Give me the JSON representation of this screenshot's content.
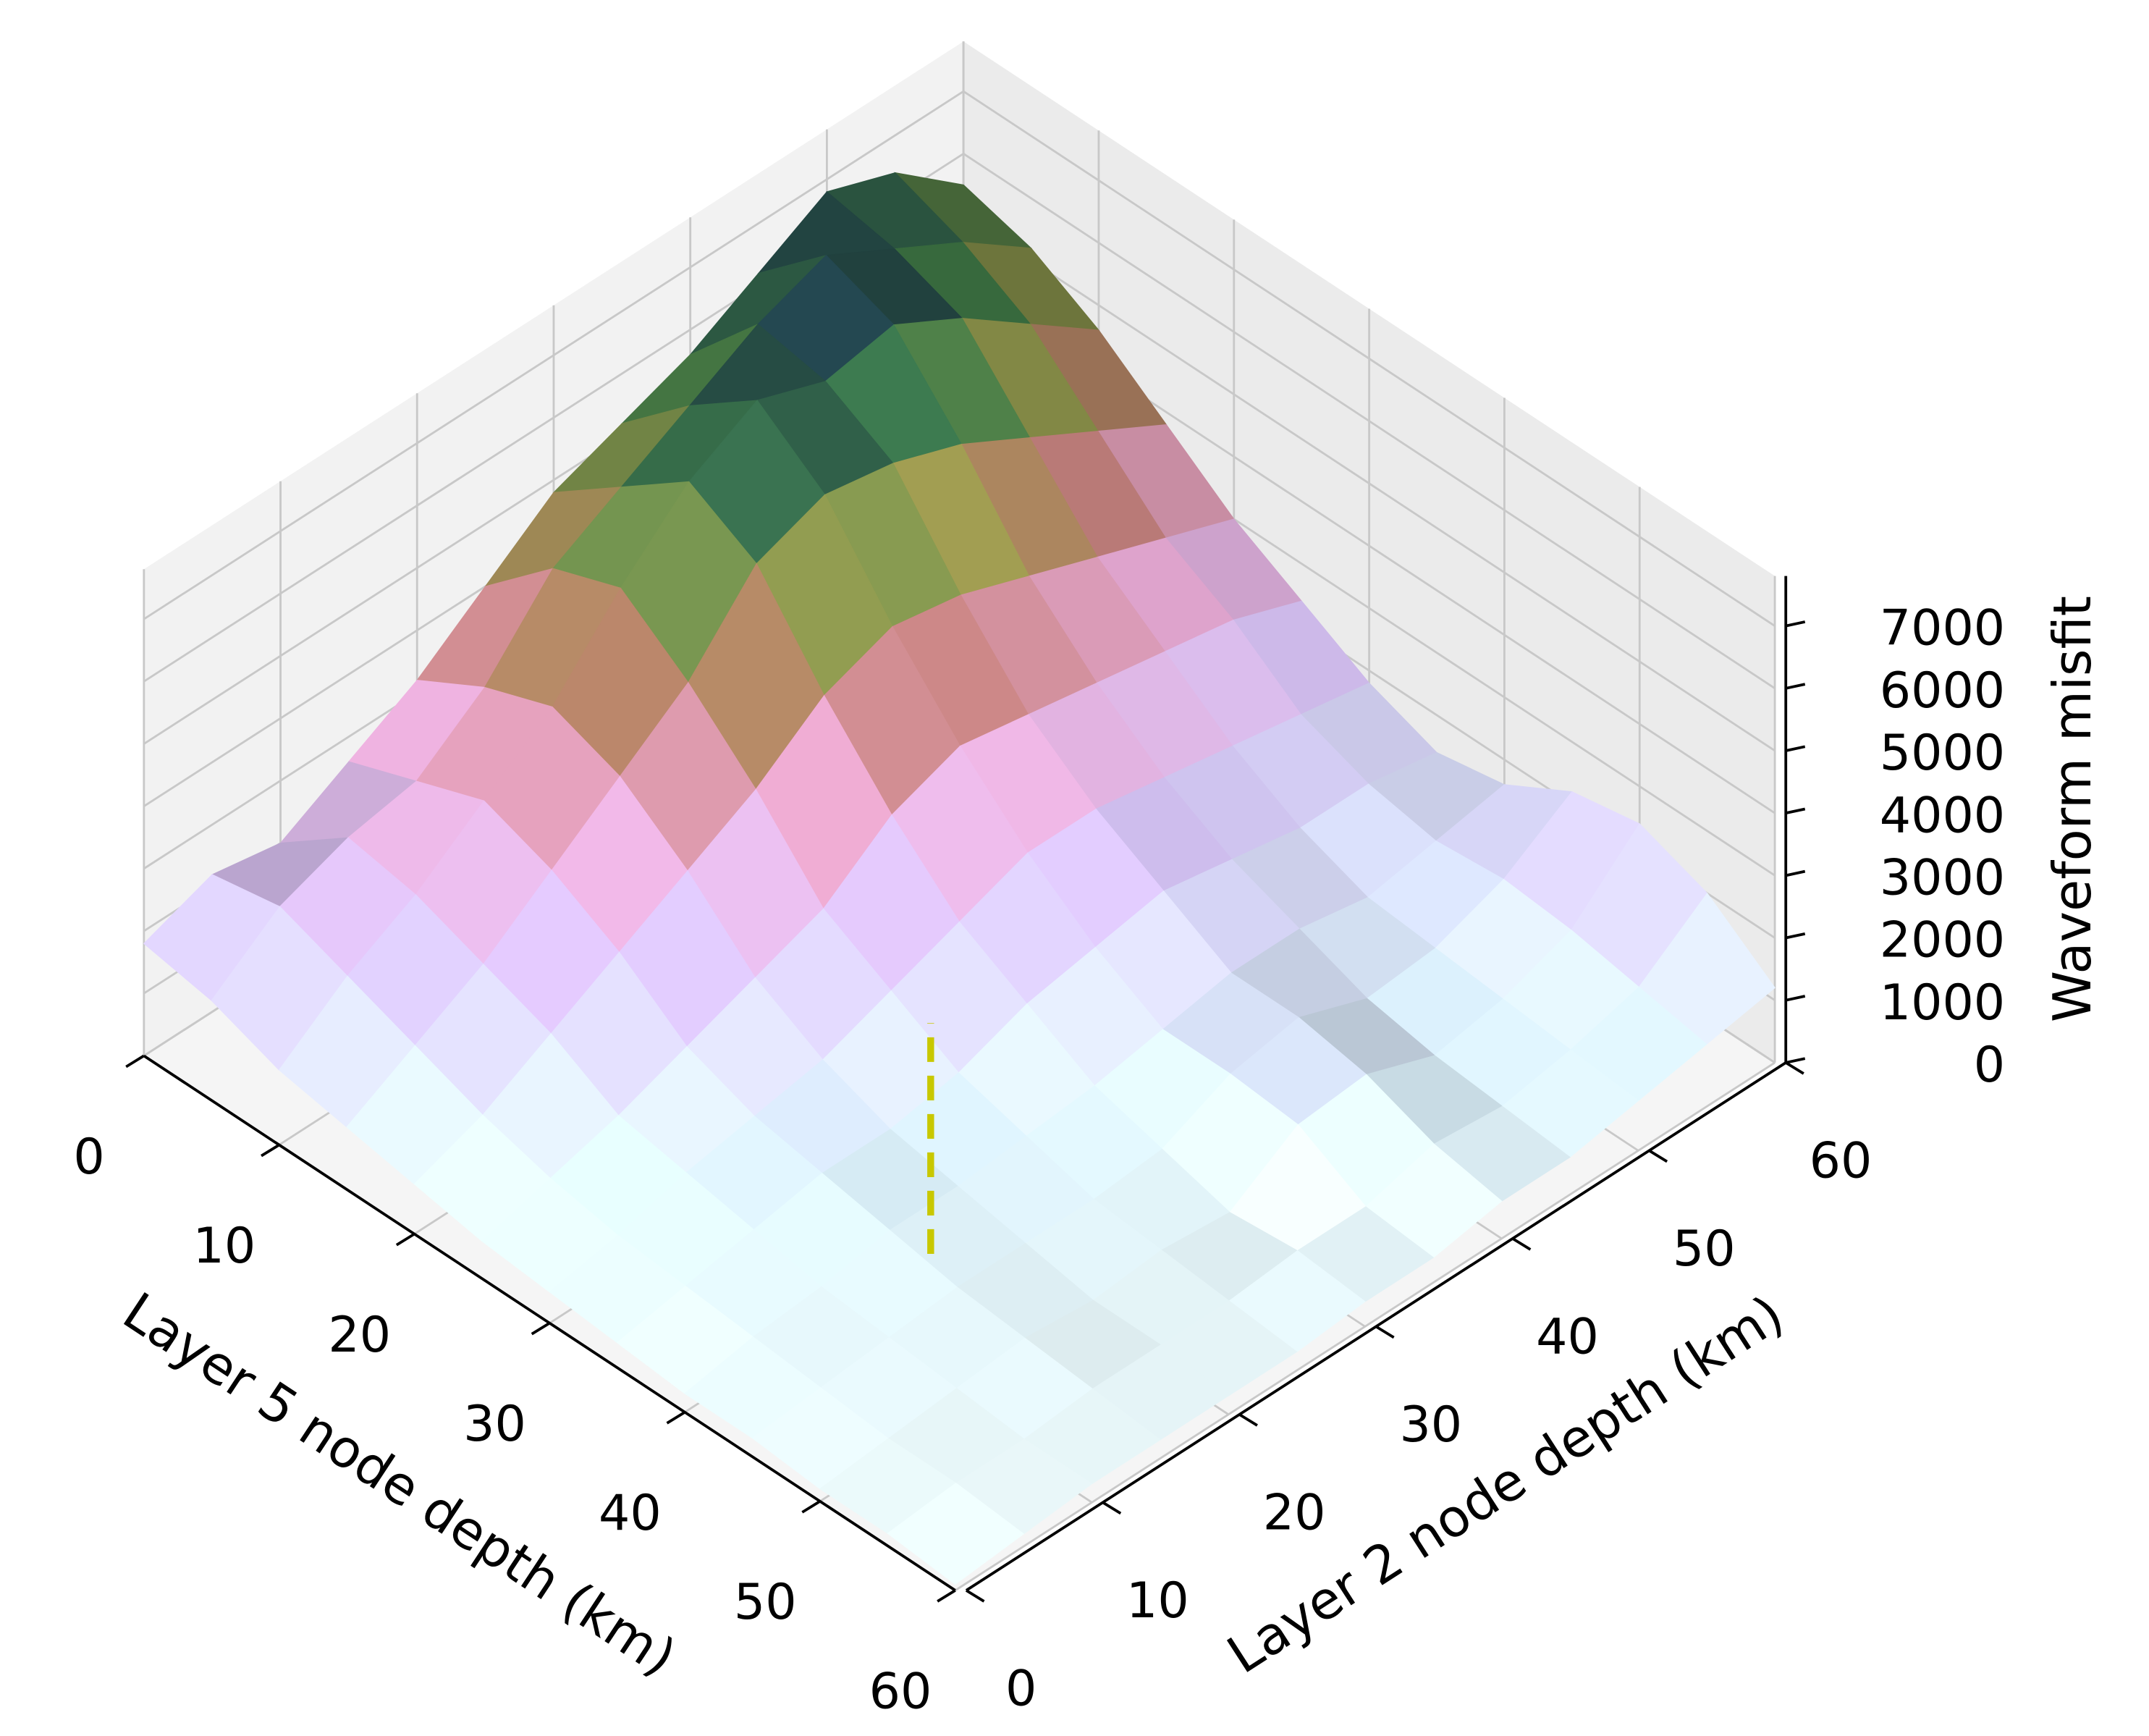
{
  "chart_data": {
    "type": "surface",
    "xlabel": "Layer 5 node depth (km)",
    "ylabel": "Layer 2 node depth (km)",
    "zlabel": "Waveform misfit",
    "x": [
      0,
      5,
      10,
      15,
      20,
      25,
      30,
      35,
      40,
      45,
      50,
      55,
      60
    ],
    "y": [
      0,
      5,
      10,
      15,
      20,
      25,
      30,
      35,
      40,
      45,
      50,
      55,
      60
    ],
    "z": [
      [
        1800,
        2200,
        2000,
        2600,
        3200,
        4000,
        4800,
        5200,
        5600,
        6200,
        6800,
        6400,
        5500
      ],
      [
        1600,
        2400,
        2800,
        3000,
        3800,
        5000,
        5600,
        6200,
        6800,
        7200,
        6600,
        6000,
        5200
      ],
      [
        1200,
        2000,
        2600,
        3400,
        4200,
        5400,
        6400,
        7000,
        6600,
        6800,
        6200,
        5400,
        4600
      ],
      [
        1000,
        1600,
        2200,
        3000,
        3800,
        4600,
        5800,
        6200,
        6000,
        5600,
        5000,
        4400,
        3800
      ],
      [
        800,
        1200,
        1800,
        2400,
        3000,
        3600,
        4400,
        4800,
        4600,
        4200,
        3800,
        3400,
        3000
      ],
      [
        600,
        900,
        1200,
        1600,
        2000,
        2400,
        3200,
        3600,
        3400,
        3200,
        3000,
        2800,
        2400
      ],
      [
        500,
        700,
        1000,
        1200,
        1400,
        1800,
        2200,
        2600,
        2600,
        2400,
        2200,
        2000,
        1800
      ],
      [
        400,
        600,
        800,
        1000,
        1000,
        1200,
        1600,
        1800,
        2000,
        1800,
        1600,
        1600,
        1400
      ],
      [
        300,
        500,
        600,
        800,
        800,
        900,
        1000,
        1200,
        1400,
        1400,
        1200,
        1400,
        1600
      ],
      [
        300,
        400,
        500,
        600,
        600,
        600,
        700,
        1200,
        1400,
        1000,
        1100,
        1500,
        2200
      ],
      [
        200,
        300,
        400,
        500,
        400,
        500,
        400,
        1100,
        1200,
        800,
        1000,
        1400,
        2400
      ],
      [
        200,
        300,
        300,
        400,
        400,
        400,
        500,
        500,
        800,
        700,
        900,
        1200,
        2000
      ],
      [
        100,
        200,
        300,
        300,
        300,
        300,
        400,
        400,
        600,
        600,
        800,
        1000,
        1200
      ]
    ],
    "xlim": [
      0,
      60
    ],
    "ylim": [
      0,
      60
    ],
    "zlim": [
      0,
      7800
    ],
    "xticks": [
      0,
      10,
      20,
      30,
      40,
      50,
      60
    ],
    "yticks": [
      0,
      10,
      20,
      30,
      40,
      50,
      60
    ],
    "zticks": [
      0,
      1000,
      2000,
      3000,
      4000,
      5000,
      6000,
      7000
    ],
    "colormap": "cubehelix_r",
    "grid": true,
    "reference_line": {
      "x": 40,
      "y": 18,
      "z": [
        0,
        3700
      ],
      "color": "#c8c800",
      "style": "dashed"
    }
  }
}
